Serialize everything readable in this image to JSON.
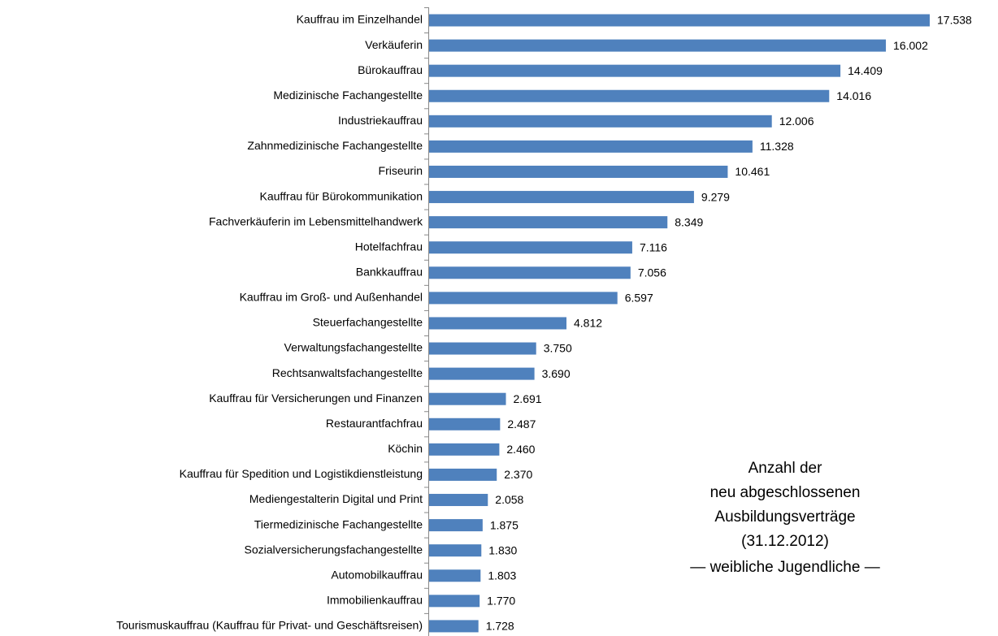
{
  "chart_data": {
    "type": "bar",
    "orientation": "horizontal",
    "color": "#4f81bd",
    "categories": [
      "Kauffrau im Einzelhandel",
      "Verkäuferin",
      "Bürokauffrau",
      "Medizinische Fachangestellte",
      "Industriekauffrau",
      "Zahnmedizinische Fachangestellte",
      "Friseurin",
      "Kauffrau für Bürokommunikation",
      "Fachverkäuferin im Lebensmittelhandwerk",
      "Hotelfachfrau",
      "Bankkauffrau",
      "Kauffrau im Groß- und Außenhandel",
      "Steuerfachangestellte",
      "Verwaltungsfachangestellte",
      "Rechtsanwaltsfachangestellte",
      "Kauffrau für Versicherungen und Finanzen",
      "Restaurantfachfrau",
      "Köchin",
      "Kauffrau für Spedition und Logistikdienstleistung",
      "Mediengestalterin Digital und Print",
      "Tiermedizinische Fachangestellte",
      "Sozialversicherungsfachangestellte",
      "Automobilkauffrau",
      "Immobilienkauffrau",
      "Tourismuskauffrau (Kauffrau für Privat- und Geschäftsreisen)"
    ],
    "values": [
      17538,
      16002,
      14409,
      14016,
      12006,
      11328,
      10461,
      9279,
      8349,
      7116,
      7056,
      6597,
      4812,
      3750,
      3690,
      2691,
      2487,
      2460,
      2370,
      2058,
      1875,
      1830,
      1803,
      1770,
      1728
    ],
    "value_labels": [
      "17.538",
      "16.002",
      "14.409",
      "14.016",
      "12.006",
      "11.328",
      "10.461",
      "9.279",
      "8.349",
      "7.116",
      "7.056",
      "6.597",
      "4.812",
      "3.750",
      "3.690",
      "2.691",
      "2.487",
      "2.460",
      "2.370",
      "2.058",
      "1.875",
      "1.830",
      "1.803",
      "1.770",
      "1.728"
    ],
    "annotation": [
      "Anzahl der",
      "neu abgeschlossenen",
      "Ausbildungsverträge",
      "(31.12.2012)",
      "— weibliche Jugendliche —"
    ]
  }
}
